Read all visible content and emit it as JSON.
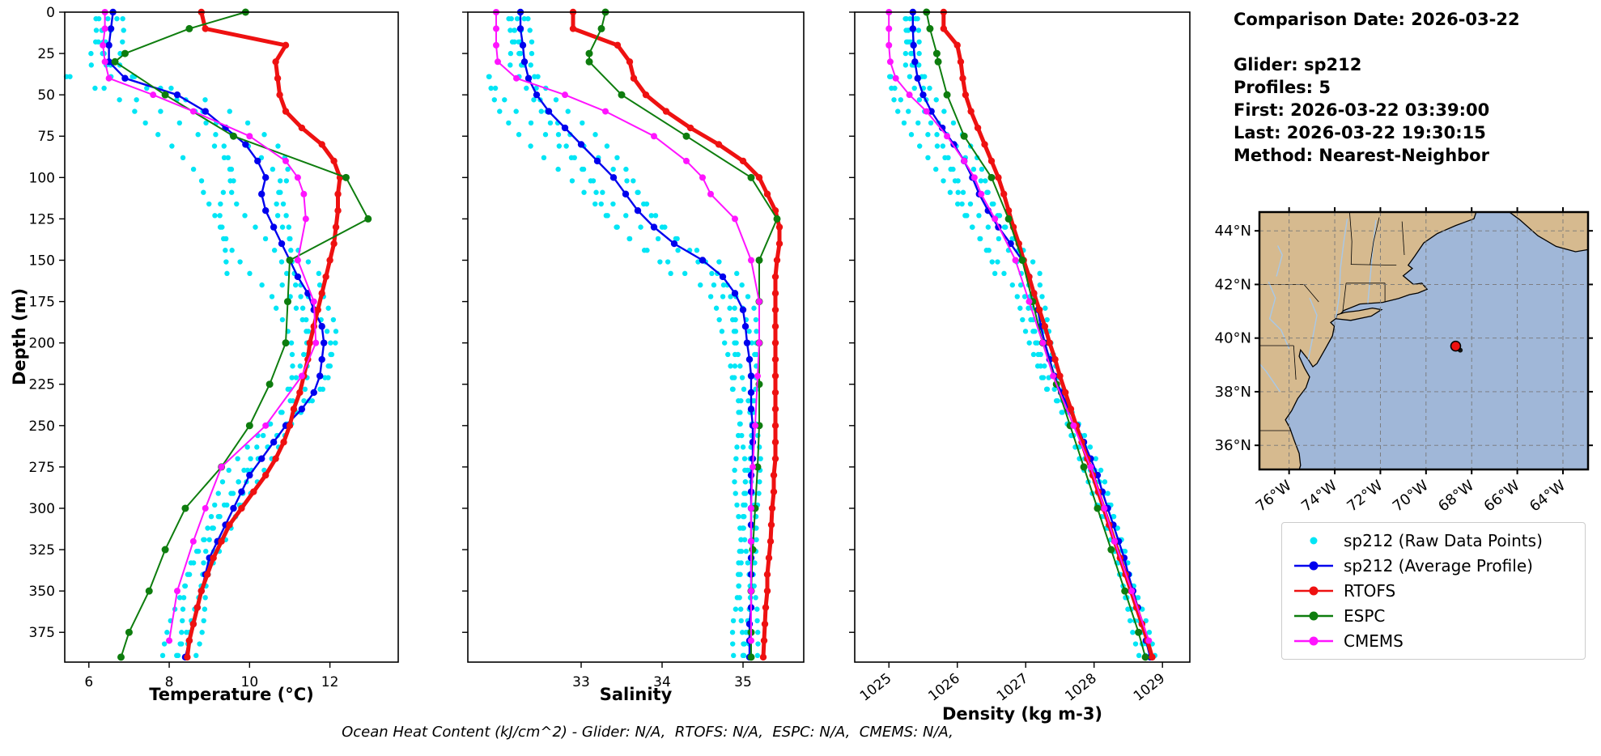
{
  "info_panel": {
    "comparison_date": "Comparison Date: 2026-03-22",
    "glider": "Glider: sp212",
    "profiles": "Profiles: 5",
    "first": "First: 2026-03-22 03:39:00",
    "last": "Last: 2026-03-22 19:30:15",
    "method": "Method: Nearest-Neighbor"
  },
  "shared": {
    "ylabel": "Depth (m)"
  },
  "footer": {
    "text": "Ocean Heat Content (kJ/cm^2) - Glider: N/A,  RTOFS: N/A,  ESPC: N/A,  CMEMS: N/A,"
  },
  "legend": {
    "items": [
      {
        "label": "sp212 (Raw Data Points)",
        "color": "#00e5f5",
        "type": "scatter"
      },
      {
        "label": "sp212 (Average Profile)",
        "color": "#0000ee",
        "type": "line"
      },
      {
        "label": "RTOFS",
        "color": "#ee1111",
        "type": "line"
      },
      {
        "label": "ESPC",
        "color": "#0e7d0e",
        "type": "line"
      },
      {
        "label": "CMEMS",
        "color": "#ff14ff",
        "type": "line"
      }
    ]
  },
  "chart_data": [
    {
      "id": "temperature",
      "type": "line",
      "xlabel": "Temperature (°C)",
      "xlim": [
        5.4,
        13.7
      ],
      "xticks": [
        6,
        8,
        10,
        12
      ],
      "ylim": [
        0,
        393
      ],
      "yticks": [
        0,
        25,
        50,
        75,
        100,
        125,
        150,
        175,
        200,
        225,
        250,
        275,
        300,
        325,
        350,
        375
      ],
      "series": [
        {
          "name": "sp212 (Average Profile)",
          "color": "#0000ee",
          "width": 2.4,
          "marker_r": 4.2,
          "depths": [
            0,
            10,
            20,
            30,
            40,
            50,
            60,
            70,
            80,
            90,
            100,
            110,
            120,
            130,
            140,
            150,
            160,
            170,
            180,
            190,
            200,
            210,
            220,
            230,
            240,
            250,
            260,
            270,
            280,
            290,
            300,
            310,
            320,
            330,
            340,
            350,
            360,
            370,
            380,
            390
          ],
          "values": [
            6.6,
            6.55,
            6.5,
            6.5,
            6.9,
            8.2,
            8.9,
            9.4,
            9.9,
            10.2,
            10.4,
            10.3,
            10.4,
            10.6,
            10.8,
            11.0,
            11.2,
            11.45,
            11.6,
            11.8,
            11.85,
            11.8,
            11.75,
            11.6,
            11.3,
            10.9,
            10.6,
            10.3,
            10.0,
            9.8,
            9.6,
            9.4,
            9.2,
            9.0,
            8.9,
            8.8,
            8.7,
            8.6,
            8.5,
            8.4
          ]
        },
        {
          "name": "RTOFS",
          "color": "#ee1111",
          "width": 5,
          "marker_r": 4.2,
          "depths": [
            0,
            10,
            20,
            30,
            40,
            50,
            60,
            70,
            80,
            90,
            100,
            110,
            120,
            130,
            140,
            150,
            160,
            170,
            180,
            190,
            200,
            210,
            220,
            230,
            240,
            250,
            260,
            270,
            280,
            290,
            300,
            310,
            320,
            330,
            340,
            350,
            360,
            370,
            380,
            390
          ],
          "values": [
            8.8,
            8.9,
            10.9,
            10.65,
            10.7,
            10.75,
            10.9,
            11.3,
            11.8,
            12.1,
            12.25,
            12.2,
            12.2,
            12.15,
            12.1,
            12.0,
            11.9,
            11.8,
            11.7,
            11.6,
            11.5,
            11.45,
            11.35,
            11.25,
            11.1,
            11.0,
            10.85,
            10.65,
            10.4,
            10.1,
            9.8,
            9.5,
            9.3,
            9.1,
            8.95,
            8.8,
            8.7,
            8.6,
            8.5,
            8.45
          ]
        },
        {
          "name": "ESPC",
          "color": "#0e7d0e",
          "width": 2,
          "marker_r": 4.5,
          "depths": [
            0,
            10,
            25,
            30,
            50,
            75,
            100,
            125,
            150,
            175,
            200,
            225,
            250,
            275,
            300,
            325,
            350,
            375,
            390
          ],
          "values": [
            9.9,
            8.5,
            6.9,
            6.65,
            7.9,
            9.6,
            12.4,
            12.95,
            11.0,
            10.95,
            10.9,
            10.5,
            10.0,
            9.3,
            8.4,
            7.9,
            7.5,
            7.0,
            6.8
          ]
        },
        {
          "name": "CMEMS",
          "color": "#ff14ff",
          "width": 2,
          "marker_r": 4,
          "depths": [
            0,
            10,
            20,
            30,
            40,
            50,
            60,
            75,
            90,
            100,
            110,
            125,
            150,
            175,
            200,
            220,
            250,
            275,
            300,
            320,
            350,
            380
          ],
          "values": [
            6.4,
            6.4,
            6.35,
            6.4,
            6.5,
            7.6,
            8.6,
            10.0,
            10.9,
            11.2,
            11.35,
            11.4,
            11.2,
            11.6,
            11.65,
            11.3,
            10.4,
            9.3,
            8.9,
            8.6,
            8.2,
            8.0
          ]
        }
      ],
      "raw": {
        "name": "sp212 (Raw Data Points)",
        "color": "#00e5f5",
        "base": "sp212 (Average Profile)",
        "offsets": [
          -1.6,
          -1.05,
          -0.5,
          0.2,
          0.5
        ],
        "wiggle": 0.28
      }
    },
    {
      "id": "salinity",
      "type": "line",
      "xlabel": "Salinity",
      "xlim": [
        31.6,
        35.75
      ],
      "xticks": [
        33,
        34,
        35
      ],
      "ylim": [
        0,
        393
      ],
      "yticks": [
        0,
        25,
        50,
        75,
        100,
        125,
        150,
        175,
        200,
        225,
        250,
        275,
        300,
        325,
        350,
        375
      ],
      "series": [
        {
          "name": "sp212 (Average Profile)",
          "color": "#0000ee",
          "width": 2.4,
          "marker_r": 4.2,
          "depths": [
            0,
            10,
            20,
            30,
            40,
            50,
            60,
            70,
            80,
            90,
            100,
            110,
            120,
            130,
            140,
            150,
            160,
            170,
            180,
            190,
            200,
            210,
            220,
            230,
            240,
            250,
            260,
            270,
            280,
            290,
            300,
            310,
            320,
            330,
            340,
            350,
            360,
            370,
            380,
            390
          ],
          "values": [
            32.25,
            32.25,
            32.28,
            32.3,
            32.35,
            32.45,
            32.6,
            32.8,
            33.0,
            33.2,
            33.4,
            33.55,
            33.7,
            33.9,
            34.15,
            34.5,
            34.75,
            34.9,
            35.0,
            35.03,
            35.05,
            35.08,
            35.1,
            35.1,
            35.1,
            35.12,
            35.12,
            35.12,
            35.1,
            35.1,
            35.1,
            35.1,
            35.1,
            35.1,
            35.1,
            35.1,
            35.1,
            35.08,
            35.08,
            35.08
          ]
        },
        {
          "name": "RTOFS",
          "color": "#ee1111",
          "width": 5,
          "marker_r": 4.2,
          "depths": [
            0,
            10,
            20,
            30,
            40,
            50,
            60,
            70,
            80,
            90,
            100,
            110,
            120,
            130,
            140,
            150,
            160,
            170,
            180,
            190,
            200,
            210,
            220,
            230,
            240,
            250,
            260,
            270,
            280,
            290,
            300,
            310,
            320,
            330,
            340,
            350,
            360,
            370,
            380,
            390
          ],
          "values": [
            32.9,
            32.9,
            33.45,
            33.6,
            33.65,
            33.8,
            34.05,
            34.35,
            34.7,
            35.0,
            35.2,
            35.3,
            35.4,
            35.45,
            35.45,
            35.42,
            35.4,
            35.4,
            35.4,
            35.4,
            35.4,
            35.4,
            35.4,
            35.4,
            35.4,
            35.4,
            35.4,
            35.4,
            35.38,
            35.38,
            35.36,
            35.35,
            35.34,
            35.32,
            35.3,
            35.3,
            35.28,
            35.27,
            35.26,
            35.25
          ]
        },
        {
          "name": "ESPC",
          "color": "#0e7d0e",
          "width": 2,
          "marker_r": 4.5,
          "depths": [
            0,
            10,
            25,
            30,
            50,
            75,
            100,
            125,
            150,
            175,
            200,
            225,
            250,
            275,
            300,
            325,
            350,
            375,
            390
          ],
          "values": [
            33.3,
            33.25,
            33.1,
            33.1,
            33.5,
            34.3,
            35.1,
            35.42,
            35.2,
            35.2,
            35.2,
            35.2,
            35.2,
            35.18,
            35.15,
            35.12,
            35.1,
            35.1,
            35.1
          ]
        },
        {
          "name": "CMEMS",
          "color": "#ff14ff",
          "width": 2,
          "marker_r": 4,
          "depths": [
            0,
            10,
            20,
            30,
            40,
            50,
            60,
            75,
            90,
            100,
            110,
            125,
            150,
            175,
            200,
            220,
            250,
            275,
            300,
            320,
            350,
            380
          ],
          "values": [
            31.95,
            31.95,
            31.95,
            31.97,
            32.2,
            32.8,
            33.3,
            33.9,
            34.3,
            34.5,
            34.6,
            34.9,
            35.1,
            35.2,
            35.2,
            35.18,
            35.15,
            35.12,
            35.1,
            35.1,
            35.1,
            35.1
          ]
        }
      ],
      "raw": {
        "name": "sp212 (Raw Data Points)",
        "color": "#00e5f5",
        "base": "sp212 (Average Profile)",
        "offsets": [
          -0.55,
          -0.38,
          -0.18,
          0.07,
          0.2
        ],
        "wiggle": 0.1
      }
    },
    {
      "id": "density",
      "type": "line",
      "xlabel": "Density (kg m-3)",
      "xlim": [
        1024.5,
        1029.4
      ],
      "xticks": [
        1025,
        1026,
        1027,
        1028,
        1029
      ],
      "ylim": [
        0,
        393
      ],
      "yticks": [
        0,
        25,
        50,
        75,
        100,
        125,
        150,
        175,
        200,
        225,
        250,
        275,
        300,
        325,
        350,
        375
      ],
      "series": [
        {
          "name": "sp212 (Average Profile)",
          "color": "#0000ee",
          "width": 2.4,
          "marker_r": 4.2,
          "depths": [
            0,
            10,
            20,
            30,
            40,
            50,
            60,
            70,
            80,
            90,
            100,
            110,
            120,
            130,
            140,
            150,
            160,
            170,
            180,
            190,
            200,
            210,
            220,
            230,
            240,
            250,
            260,
            270,
            280,
            290,
            300,
            310,
            320,
            330,
            340,
            350,
            360,
            370,
            380,
            390
          ],
          "values": [
            1025.35,
            1025.35,
            1025.36,
            1025.38,
            1025.42,
            1025.5,
            1025.62,
            1025.78,
            1025.95,
            1026.1,
            1026.22,
            1026.32,
            1026.45,
            1026.6,
            1026.78,
            1026.95,
            1027.05,
            1027.12,
            1027.18,
            1027.22,
            1027.28,
            1027.35,
            1027.42,
            1027.52,
            1027.63,
            1027.75,
            1027.85,
            1027.95,
            1028.05,
            1028.12,
            1028.2,
            1028.28,
            1028.36,
            1028.44,
            1028.5,
            1028.57,
            1028.64,
            1028.7,
            1028.76,
            1028.82
          ]
        },
        {
          "name": "RTOFS",
          "color": "#ee1111",
          "width": 5,
          "marker_r": 4.2,
          "depths": [
            0,
            10,
            20,
            30,
            40,
            50,
            60,
            70,
            80,
            90,
            100,
            110,
            120,
            130,
            140,
            150,
            160,
            170,
            180,
            190,
            200,
            210,
            220,
            230,
            240,
            250,
            260,
            270,
            280,
            290,
            300,
            310,
            320,
            330,
            340,
            350,
            360,
            370,
            380,
            390
          ],
          "values": [
            1025.8,
            1025.8,
            1026.0,
            1026.05,
            1026.08,
            1026.12,
            1026.2,
            1026.3,
            1026.4,
            1026.5,
            1026.6,
            1026.68,
            1026.75,
            1026.82,
            1026.9,
            1026.97,
            1027.05,
            1027.12,
            1027.2,
            1027.28,
            1027.35,
            1027.43,
            1027.5,
            1027.58,
            1027.66,
            1027.74,
            1027.82,
            1027.9,
            1027.98,
            1028.06,
            1028.14,
            1028.22,
            1028.3,
            1028.38,
            1028.46,
            1028.54,
            1028.62,
            1028.7,
            1028.78,
            1028.85
          ]
        },
        {
          "name": "ESPC",
          "color": "#0e7d0e",
          "width": 2,
          "marker_r": 4.5,
          "depths": [
            0,
            10,
            25,
            30,
            50,
            75,
            100,
            125,
            150,
            175,
            200,
            225,
            250,
            275,
            300,
            325,
            350,
            375,
            390
          ],
          "values": [
            1025.55,
            1025.6,
            1025.7,
            1025.72,
            1025.85,
            1026.1,
            1026.5,
            1026.75,
            1026.95,
            1027.1,
            1027.25,
            1027.45,
            1027.65,
            1027.85,
            1028.05,
            1028.25,
            1028.45,
            1028.65,
            1028.75
          ]
        },
        {
          "name": "CMEMS",
          "color": "#ff14ff",
          "width": 2,
          "marker_r": 4,
          "depths": [
            0,
            10,
            20,
            30,
            40,
            50,
            60,
            75,
            90,
            100,
            110,
            125,
            150,
            175,
            200,
            220,
            250,
            275,
            300,
            320,
            350,
            380
          ],
          "values": [
            1025.0,
            1025.0,
            1025.0,
            1025.02,
            1025.1,
            1025.3,
            1025.55,
            1025.85,
            1026.1,
            1026.25,
            1026.35,
            1026.55,
            1026.85,
            1027.05,
            1027.25,
            1027.4,
            1027.7,
            1027.95,
            1028.15,
            1028.3,
            1028.55,
            1028.8
          ]
        }
      ],
      "raw": {
        "name": "sp212 (Raw Data Points)",
        "color": "#00e5f5",
        "base": "sp212 (Average Profile)",
        "offsets": [
          -0.45,
          -0.32,
          -0.16,
          0.06,
          0.16
        ],
        "wiggle": 0.07
      }
    }
  ],
  "map": {
    "extent": {
      "lon_min": -77.3,
      "lon_max": -62.9,
      "lat_min": 35.1,
      "lat_max": 44.7
    },
    "xticks": [
      {
        "v": -76,
        "label": "76°W"
      },
      {
        "v": -74,
        "label": "74°W"
      },
      {
        "v": -72,
        "label": "72°W"
      },
      {
        "v": -70,
        "label": "70°W"
      },
      {
        "v": -68,
        "label": "68°W"
      },
      {
        "v": -66,
        "label": "66°W"
      },
      {
        "v": -64,
        "label": "64°W"
      }
    ],
    "yticks": [
      {
        "v": 36,
        "label": "36°N"
      },
      {
        "v": 38,
        "label": "38°N"
      },
      {
        "v": 40,
        "label": "40°N"
      },
      {
        "v": 42,
        "label": "42°N"
      },
      {
        "v": 44,
        "label": "44°N"
      }
    ],
    "marker": {
      "lon": -68.7,
      "lat": 39.7,
      "color": "#ee1111"
    },
    "marker_secondary": {
      "lon": -68.5,
      "lat": 39.55,
      "color": "#111111"
    },
    "colors": {
      "ocean": "#a0b7d8",
      "land": "#d6ba8f",
      "coast": "#000000",
      "rivers": "#a8c8e8",
      "grid": "#777777"
    }
  }
}
